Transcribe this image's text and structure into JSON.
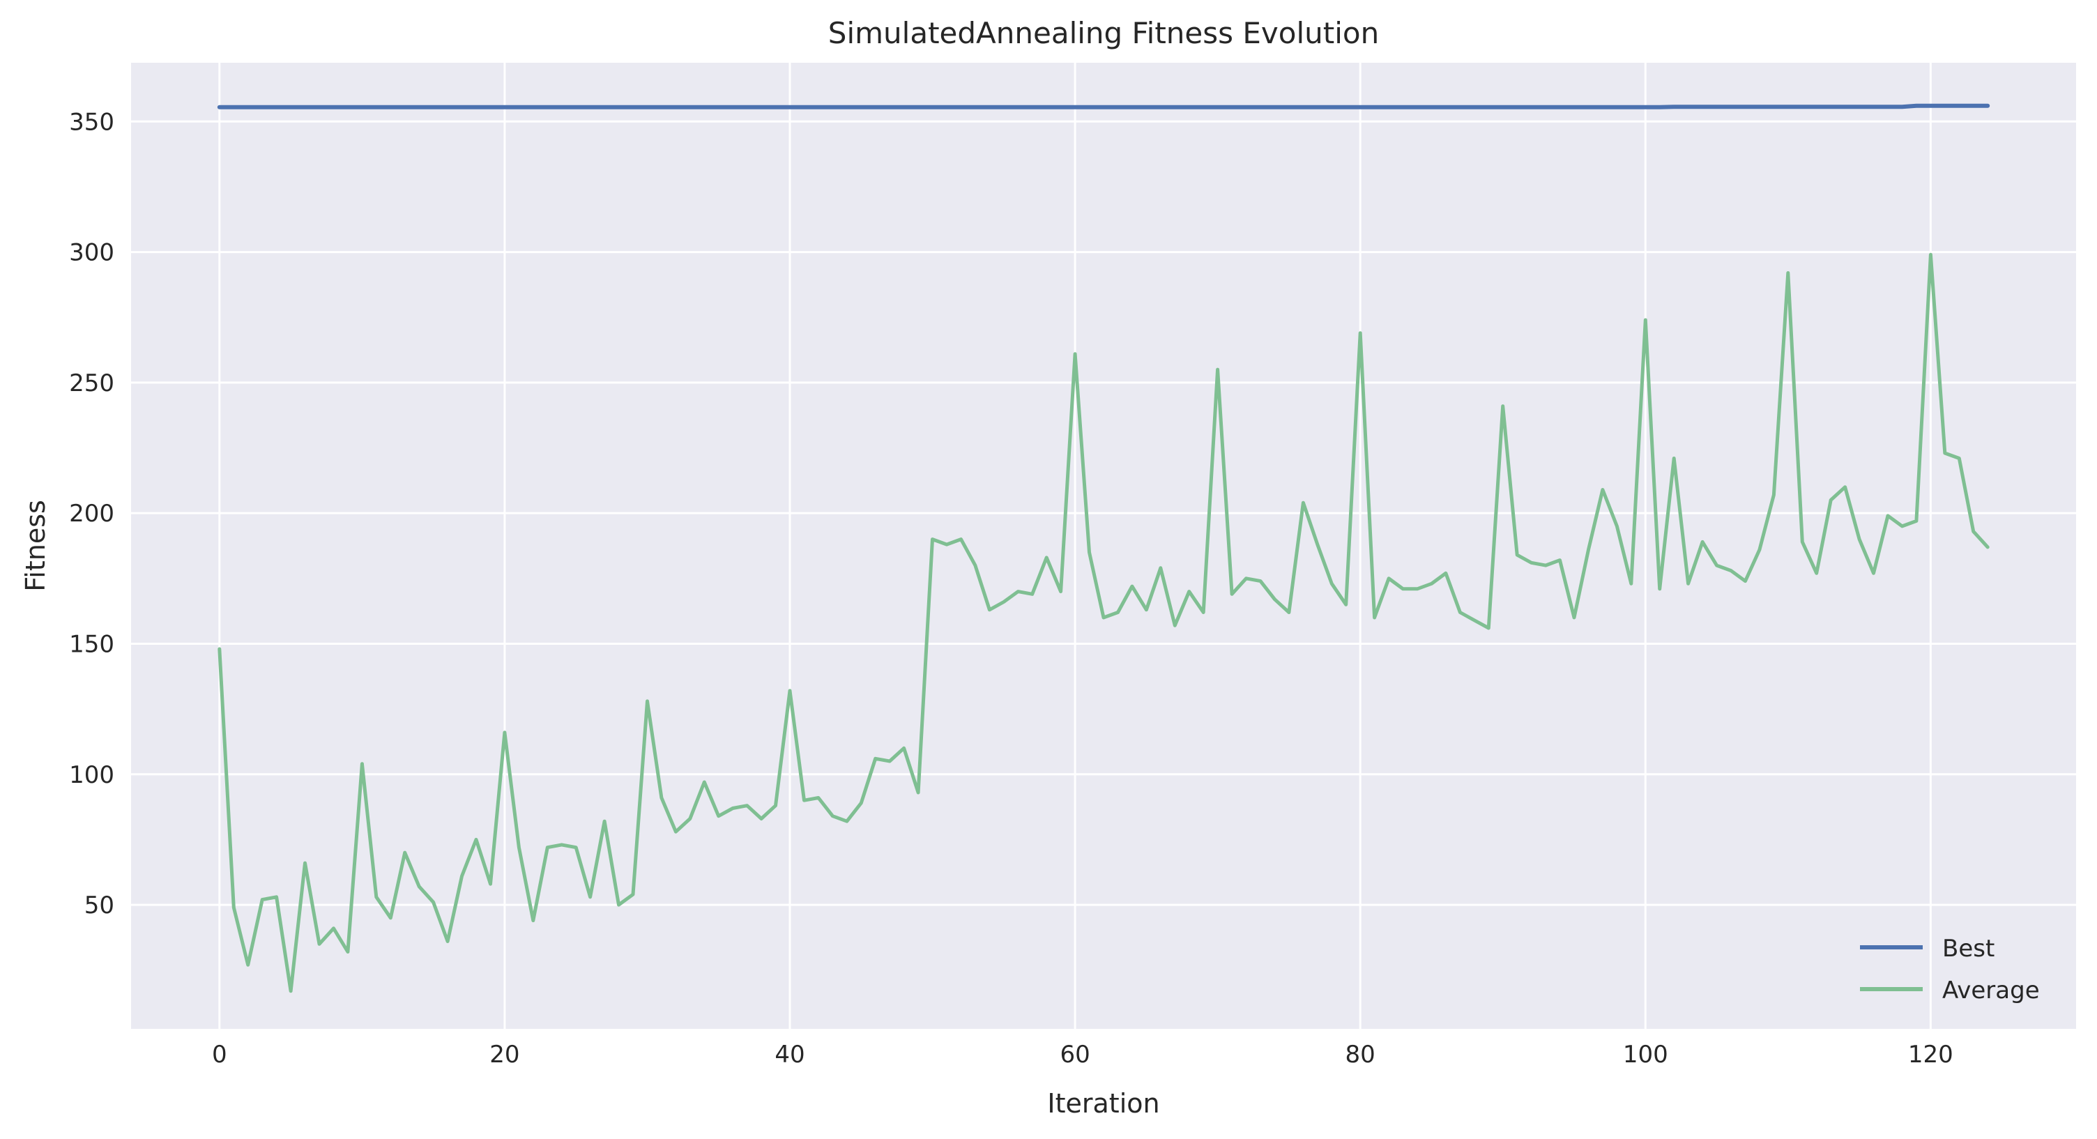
{
  "chart_data": {
    "type": "line",
    "title": "SimulatedAnnealing Fitness Evolution",
    "xlabel": "Iteration",
    "ylabel": "Fitness",
    "xlim": [
      -6.2,
      130.2
    ],
    "ylim": [
      2.5,
      372.5
    ],
    "xticks": [
      0,
      20,
      40,
      60,
      80,
      100,
      120
    ],
    "yticks": [
      50,
      100,
      150,
      200,
      250,
      300,
      350
    ],
    "grid": true,
    "legend_position": "bottom-right",
    "colors": {
      "background": "#eaeaf2",
      "grid": "#ffffff",
      "best": "#4c72b0",
      "average": "#7fbf92"
    },
    "series": [
      {
        "name": "Best",
        "color": "#4c72b0",
        "values": [
          355.5,
          355.5,
          355.5,
          355.5,
          355.5,
          355.5,
          355.5,
          355.5,
          355.5,
          355.5,
          355.5,
          355.5,
          355.5,
          355.5,
          355.5,
          355.5,
          355.5,
          355.5,
          355.5,
          355.5,
          355.5,
          355.5,
          355.5,
          355.5,
          355.5,
          355.5,
          355.5,
          355.5,
          355.5,
          355.5,
          355.5,
          355.5,
          355.5,
          355.5,
          355.5,
          355.5,
          355.5,
          355.5,
          355.5,
          355.5,
          355.5,
          355.5,
          355.5,
          355.5,
          355.5,
          355.5,
          355.5,
          355.5,
          355.5,
          355.5,
          355.5,
          355.5,
          355.5,
          355.5,
          355.5,
          355.5,
          355.5,
          355.5,
          355.5,
          355.5,
          355.5,
          355.5,
          355.5,
          355.5,
          355.5,
          355.5,
          355.5,
          355.5,
          355.5,
          355.5,
          355.5,
          355.5,
          355.5,
          355.5,
          355.5,
          355.5,
          355.5,
          355.5,
          355.5,
          355.5,
          355.5,
          355.5,
          355.5,
          355.5,
          355.5,
          355.5,
          355.5,
          355.5,
          355.5,
          355.5,
          355.5,
          355.5,
          355.5,
          355.5,
          355.5,
          355.5,
          355.5,
          355.5,
          355.5,
          355.5,
          355.5,
          355.5,
          355.6,
          355.6,
          355.6,
          355.6,
          355.6,
          355.6,
          355.6,
          355.6,
          355.6,
          355.6,
          355.6,
          355.6,
          355.6,
          355.6,
          355.6,
          355.6,
          355.6,
          356.0,
          356.0,
          356.0,
          356.0,
          356.0,
          356.0
        ]
      },
      {
        "name": "Average",
        "color": "#7fbf92",
        "values": [
          148,
          49,
          27,
          52,
          53,
          17,
          66,
          35,
          41,
          32,
          104,
          53,
          45,
          70,
          57,
          51,
          36,
          61,
          75,
          58,
          116,
          72,
          44,
          72,
          73,
          72,
          53,
          82,
          50,
          54,
          128,
          91,
          78,
          83,
          97,
          84,
          87,
          88,
          83,
          88,
          132,
          90,
          91,
          84,
          82,
          89,
          106,
          105,
          110,
          93,
          190,
          188,
          190,
          180,
          163,
          166,
          170,
          169,
          183,
          170,
          261,
          185,
          160,
          162,
          172,
          163,
          179,
          157,
          170,
          162,
          255,
          169,
          175,
          174,
          167,
          162,
          204,
          188,
          173,
          165,
          269,
          160,
          175,
          171,
          171,
          173,
          177,
          162,
          159,
          156,
          241,
          184,
          181,
          180,
          182,
          160,
          186,
          209,
          195,
          173,
          274,
          171,
          221,
          173,
          189,
          180,
          178,
          174,
          186,
          207,
          292,
          189,
          177,
          205,
          210,
          190,
          177,
          199,
          195,
          197,
          299,
          223,
          221,
          193,
          187
        ]
      }
    ]
  }
}
